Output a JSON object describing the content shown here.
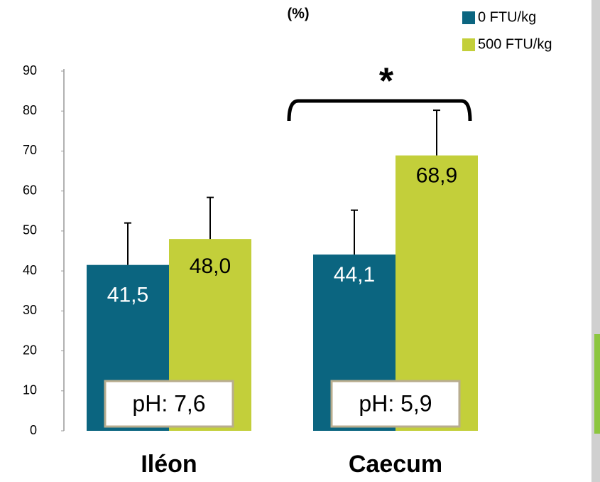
{
  "chart_data": {
    "type": "bar",
    "title": "(%)",
    "categories": [
      "Iléon",
      "Caecum"
    ],
    "series": [
      {
        "name": "0 FTU/kg",
        "color": "#0b6580",
        "values": [
          41.5,
          44.1
        ],
        "value_labels": [
          "41,5",
          "44,1"
        ],
        "errors": [
          10.5,
          11.1
        ]
      },
      {
        "name": "500 FTU/kg",
        "color": "#c3cf3a",
        "values": [
          48.0,
          68.9
        ],
        "value_labels": [
          "48,0",
          "68,9"
        ],
        "errors": [
          10.4,
          11.3
        ]
      }
    ],
    "ylim": [
      0,
      90
    ],
    "yticks": [
      0,
      10,
      20,
      30,
      40,
      50,
      60,
      70,
      80,
      90
    ],
    "grid": false,
    "legend": "top-right",
    "annotations": [
      "*",
      "pH: 7,6",
      "pH: 5,9"
    ]
  }
}
